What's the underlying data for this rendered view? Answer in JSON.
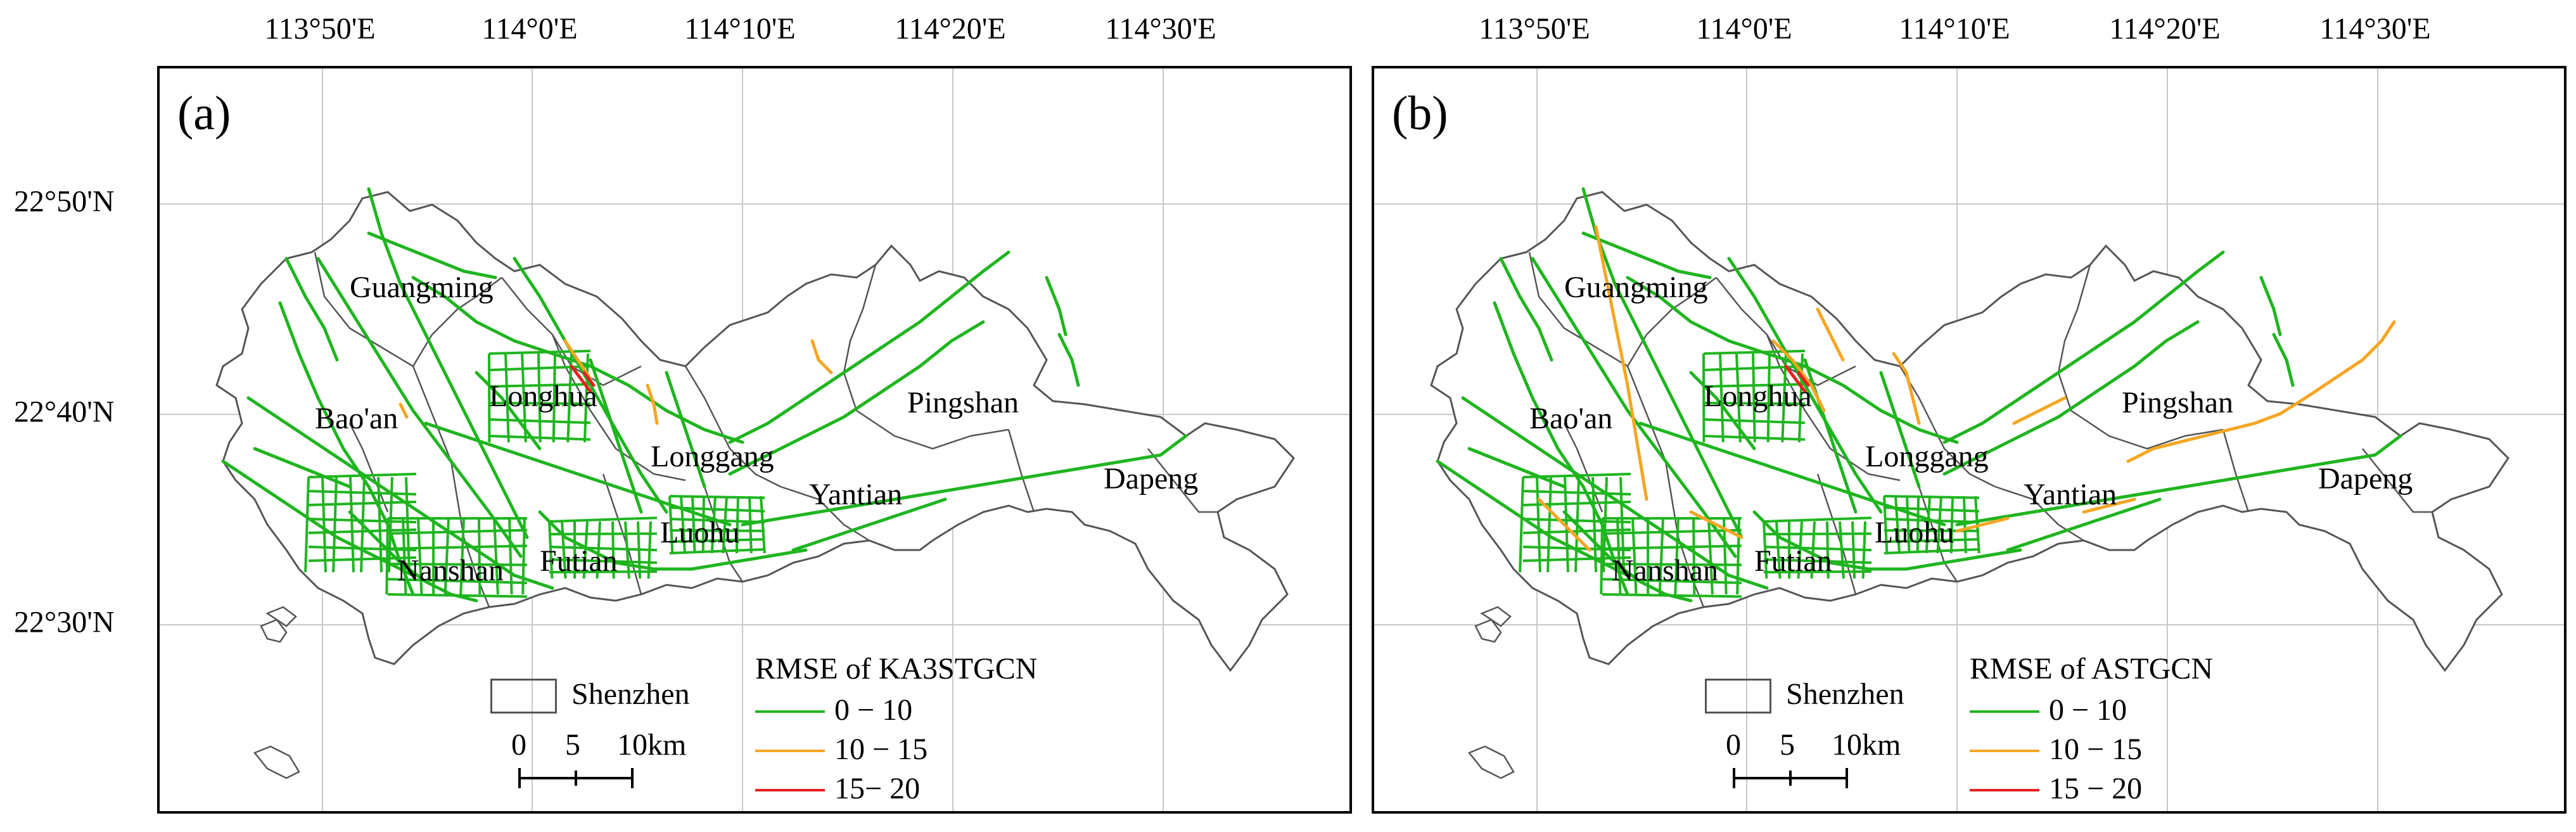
{
  "lon_labels": [
    "113°50'E",
    "114°0'E",
    "114°10'E",
    "114°20'E",
    "114°30'E"
  ],
  "lat_labels": [
    "22°50'N",
    "22°40'N",
    "22°30'N"
  ],
  "colors": {
    "low": "#1fb51f",
    "mid": "#f5a623",
    "high": "#e62020",
    "boundary": "#555555",
    "grid": "#c8c8c8"
  },
  "districts": [
    "Guangming",
    "Longhua",
    "Bao'an",
    "Pingshan",
    "Longgang",
    "Dapeng",
    "Yantian",
    "Luohu",
    "Nanshan",
    "Futian"
  ],
  "scale_bar": {
    "ticks": [
      "0",
      "5",
      "10km"
    ]
  },
  "panels": [
    {
      "tag": "(a)",
      "boundary_label": "Shenzhen",
      "legend_title": "RMSE of KA3STGCN",
      "classes": [
        "0 − 10",
        "10 − 15",
        "15− 20"
      ]
    },
    {
      "tag": "(b)",
      "boundary_label": "Shenzhen",
      "legend_title": "RMSE of ASTGCN",
      "classes": [
        "0 − 10",
        "10 − 15",
        "15 − 20"
      ]
    }
  ]
}
